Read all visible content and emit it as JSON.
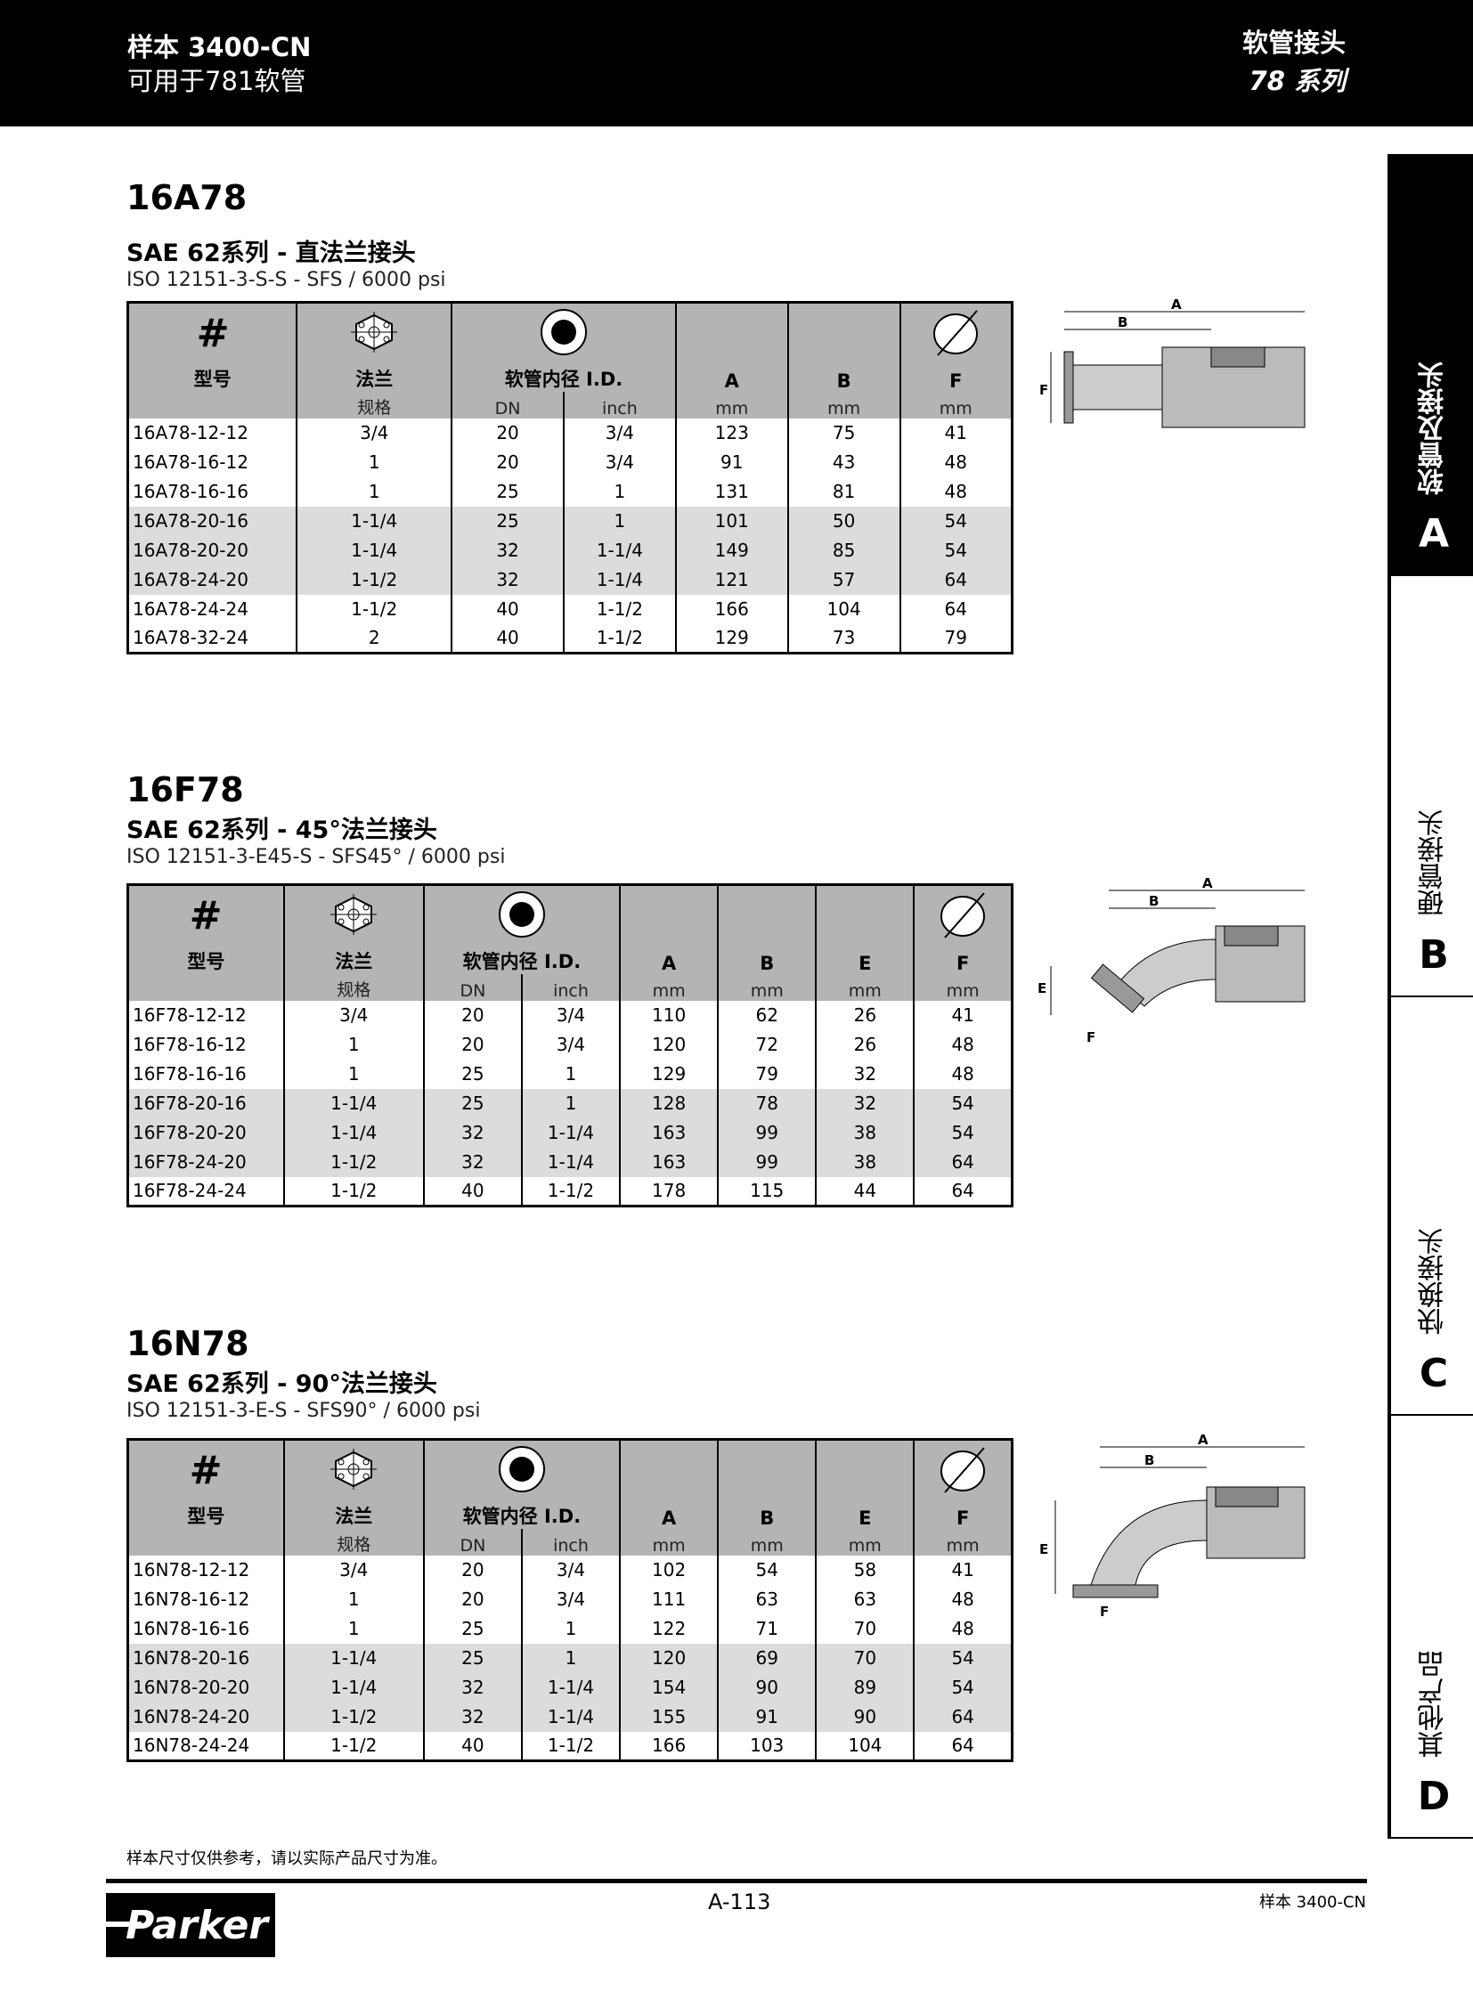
{
  "header": {
    "catalog": "样本 3400-CN",
    "hose": "可用于781软管",
    "category": "软管接头",
    "series": "78 系列"
  },
  "side_tabs": [
    {
      "label": "软管及接头",
      "letter": "A",
      "active": true
    },
    {
      "label": "硬管接头",
      "letter": "B",
      "active": false
    },
    {
      "label": "快换接头",
      "letter": "C",
      "active": false
    },
    {
      "label": "其他产品",
      "letter": "D",
      "active": false
    }
  ],
  "sections": [
    {
      "code": "16A78",
      "subtitle": "SAE 62系列 - 直法兰接头",
      "iso": "ISO 12151-3-S-S - SFS / 6000 psi",
      "headers": {
        "part": "型号",
        "flange": "法兰",
        "flange_sub": "规格",
        "id": "软管内径 I.D.",
        "dn": "DN",
        "inch": "inch",
        "dims": [
          "A",
          "B",
          "F"
        ],
        "unit": "mm"
      },
      "rows": [
        [
          "16A78-12-12",
          "3/4",
          "20",
          "3/4",
          "123",
          "75",
          "41"
        ],
        [
          "16A78-16-12",
          "1",
          "20",
          "3/4",
          "91",
          "43",
          "48"
        ],
        [
          "16A78-16-16",
          "1",
          "25",
          "1",
          "131",
          "81",
          "48"
        ],
        [
          "16A78-20-16",
          "1-1/4",
          "25",
          "1",
          "101",
          "50",
          "54"
        ],
        [
          "16A78-20-20",
          "1-1/4",
          "32",
          "1-1/4",
          "149",
          "85",
          "54"
        ],
        [
          "16A78-24-20",
          "1-1/2",
          "32",
          "1-1/4",
          "121",
          "57",
          "64"
        ],
        [
          "16A78-24-24",
          "1-1/2",
          "40",
          "1-1/2",
          "166",
          "104",
          "64"
        ],
        [
          "16A78-32-24",
          "2",
          "40",
          "1-1/2",
          "129",
          "73",
          "79"
        ]
      ],
      "diagram_labels": [
        "A",
        "B",
        "F"
      ]
    },
    {
      "code": "16F78",
      "subtitle": "SAE 62系列 - 45°法兰接头",
      "iso": "ISO 12151-3-E45-S - SFS45° / 6000 psi",
      "headers": {
        "part": "型号",
        "flange": "法兰",
        "flange_sub": "规格",
        "id": "软管内径 I.D.",
        "dn": "DN",
        "inch": "inch",
        "dims": [
          "A",
          "B",
          "E",
          "F"
        ],
        "unit": "mm"
      },
      "rows": [
        [
          "16F78-12-12",
          "3/4",
          "20",
          "3/4",
          "110",
          "62",
          "26",
          "41"
        ],
        [
          "16F78-16-12",
          "1",
          "20",
          "3/4",
          "120",
          "72",
          "26",
          "48"
        ],
        [
          "16F78-16-16",
          "1",
          "25",
          "1",
          "129",
          "79",
          "32",
          "48"
        ],
        [
          "16F78-20-16",
          "1-1/4",
          "25",
          "1",
          "128",
          "78",
          "32",
          "54"
        ],
        [
          "16F78-20-20",
          "1-1/4",
          "32",
          "1-1/4",
          "163",
          "99",
          "38",
          "54"
        ],
        [
          "16F78-24-20",
          "1-1/2",
          "32",
          "1-1/4",
          "163",
          "99",
          "38",
          "64"
        ],
        [
          "16F78-24-24",
          "1-1/2",
          "40",
          "1-1/2",
          "178",
          "115",
          "44",
          "64"
        ]
      ],
      "diagram_labels": [
        "A",
        "B",
        "E",
        "F"
      ]
    },
    {
      "code": "16N78",
      "subtitle": "SAE 62系列 - 90°法兰接头",
      "iso": "ISO 12151-3-E-S - SFS90° / 6000 psi",
      "headers": {
        "part": "型号",
        "flange": "法兰",
        "flange_sub": "规格",
        "id": "软管内径 I.D.",
        "dn": "DN",
        "inch": "inch",
        "dims": [
          "A",
          "B",
          "E",
          "F"
        ],
        "unit": "mm"
      },
      "rows": [
        [
          "16N78-12-12",
          "3/4",
          "20",
          "3/4",
          "102",
          "54",
          "58",
          "41"
        ],
        [
          "16N78-16-12",
          "1",
          "20",
          "3/4",
          "111",
          "63",
          "63",
          "48"
        ],
        [
          "16N78-16-16",
          "1",
          "25",
          "1",
          "122",
          "71",
          "70",
          "48"
        ],
        [
          "16N78-20-16",
          "1-1/4",
          "25",
          "1",
          "120",
          "69",
          "70",
          "54"
        ],
        [
          "16N78-20-20",
          "1-1/4",
          "32",
          "1-1/4",
          "154",
          "90",
          "89",
          "54"
        ],
        [
          "16N78-24-20",
          "1-1/2",
          "32",
          "1-1/4",
          "155",
          "91",
          "90",
          "64"
        ],
        [
          "16N78-24-24",
          "1-1/2",
          "40",
          "1-1/2",
          "166",
          "103",
          "104",
          "64"
        ]
      ],
      "diagram_labels": [
        "A",
        "B",
        "E",
        "F"
      ]
    }
  ],
  "footer": {
    "note": "样本尺寸仅供参考，请以实际产品尺寸为准。",
    "page": "A-113",
    "catalog": "样本 3400-CN",
    "logo": "Parker"
  },
  "colors": {
    "header_bg": "#000000",
    "table_header": "#b4b4b4",
    "row_shade": "#dcdcdc"
  }
}
